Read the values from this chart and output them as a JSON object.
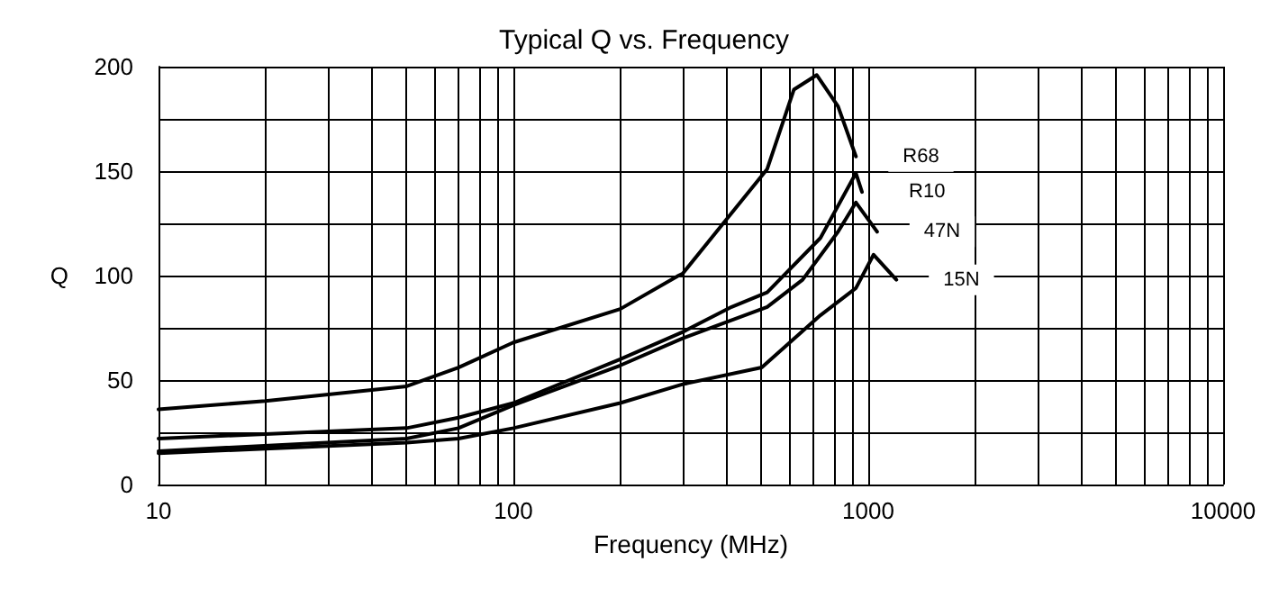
{
  "chart_data": {
    "type": "line",
    "title": "Typical Q vs. Frequency",
    "xlabel": "Frequency (MHz)",
    "ylabel": "Q",
    "log": "x",
    "grid": true,
    "legend": false,
    "marker": "none",
    "line_style": "solid",
    "xlim": [
      10,
      10000
    ],
    "ylim": [
      0,
      200
    ],
    "xticks": [
      10,
      {
        "value": 20,
        "label": null
      },
      {
        "value": 30,
        "label": null
      },
      {
        "value": 40,
        "label": null
      },
      {
        "value": 50,
        "label": null
      },
      {
        "value": 60,
        "label": null
      },
      {
        "value": 70,
        "label": null
      },
      {
        "value": 80,
        "label": null
      },
      {
        "value": 90,
        "label": null
      },
      100,
      {
        "value": 200,
        "label": null
      },
      {
        "value": 300,
        "label": null
      },
      {
        "value": 400,
        "label": null
      },
      {
        "value": 500,
        "label": null
      },
      {
        "value": 600,
        "label": null
      },
      {
        "value": 700,
        "label": null
      },
      {
        "value": 800,
        "label": null
      },
      {
        "value": 900,
        "label": null
      },
      1000,
      {
        "value": 2000,
        "label": null
      },
      {
        "value": 3000,
        "label": null
      },
      {
        "value": 4000,
        "label": null
      },
      {
        "value": 5000,
        "label": null
      },
      {
        "value": 6000,
        "label": null
      },
      {
        "value": 7000,
        "label": null
      },
      {
        "value": 8000,
        "label": null
      },
      {
        "value": 9000,
        "label": null
      },
      10000
    ],
    "yticks": [
      0,
      {
        "value": 25,
        "label": null
      },
      50,
      {
        "value": 75,
        "label": null
      },
      100,
      {
        "value": 125,
        "label": null
      },
      150,
      {
        "value": 175,
        "label": null
      },
      200
    ],
    "series": [
      {
        "name": "R68",
        "color": "#000000",
        "x": [
          10,
          20,
          50,
          70,
          100,
          200,
          292,
          300,
          519,
          617,
          716,
          822,
          923
        ],
        "values": [
          36,
          40,
          47,
          56,
          68,
          84,
          100,
          101,
          151,
          189,
          196,
          181,
          157
        ]
      },
      {
        "name": "R10",
        "color": "#000000",
        "x": [
          10,
          50,
          70,
          100,
          200,
          300,
          412,
          519,
          733,
          923,
          960
        ],
        "values": [
          22,
          27,
          32,
          39,
          60,
          73,
          85,
          92,
          118,
          149,
          140
        ]
      },
      {
        "name": "47N",
        "color": "#000000",
        "x": [
          10,
          50,
          70,
          100,
          200,
          300,
          519,
          653,
          822,
          923,
          1059
        ],
        "values": [
          16,
          22,
          27,
          38,
          57,
          70,
          85,
          98,
          121,
          135,
          121
        ]
      },
      {
        "name": "15N",
        "color": "#000000",
        "x": [
          10,
          50,
          70,
          100,
          200,
          300,
          501,
          733,
          923,
          1035,
          1200
        ],
        "values": [
          15,
          20,
          22,
          27,
          39,
          48,
          56,
          81,
          94,
          110,
          98
        ]
      }
    ]
  }
}
